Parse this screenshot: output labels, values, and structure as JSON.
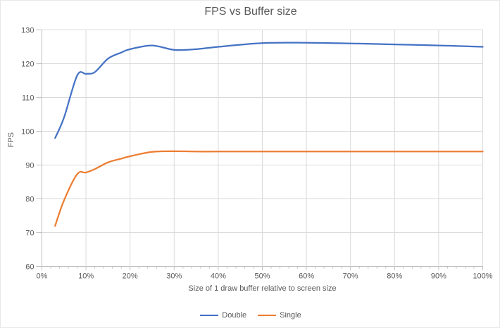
{
  "title": "FPS vs Buffer size",
  "colors": {
    "series_double": "#4472C4",
    "series_single": "#ED7D31",
    "gridline": "#D9D9D9",
    "axis_line": "#BFBFBF",
    "text": "#595959",
    "background": "#FFFFFF"
  },
  "chart_data": {
    "type": "line",
    "title": "FPS vs Buffer size",
    "xlabel": "Size of 1 draw buffer relative to screen size",
    "ylabel": "FPS",
    "xlim": [
      0,
      100
    ],
    "ylim": [
      60,
      130
    ],
    "x_major_step": 10,
    "x_minor_step": 2,
    "y_major_step": 10,
    "grid": true,
    "smooth_lines": true,
    "legend_position": "bottom",
    "x_tick_labels": [
      "0%",
      "10%",
      "20%",
      "30%",
      "40%",
      "50%",
      "60%",
      "70%",
      "80%",
      "90%",
      "100%"
    ],
    "y_tick_labels": [
      "60",
      "70",
      "80",
      "90",
      "100",
      "110",
      "120",
      "130"
    ],
    "x": [
      3,
      5,
      8,
      10,
      12,
      15,
      18,
      20,
      25,
      30,
      35,
      40,
      50,
      60,
      70,
      80,
      90,
      100
    ],
    "series": [
      {
        "name": "Double",
        "color": "#4472C4",
        "values": [
          98,
          104,
          116.5,
          117,
          117.5,
          121.5,
          123.3,
          124.3,
          125.4,
          124.1,
          124.3,
          125,
          126.1,
          126.2,
          126,
          125.7,
          125.4,
          125
        ]
      },
      {
        "name": "Single",
        "color": "#ED7D31",
        "values": [
          72,
          79.5,
          87.3,
          87.8,
          88.8,
          90.8,
          91.9,
          92.6,
          93.9,
          94.1,
          94,
          94,
          94,
          94,
          94,
          94,
          94,
          94
        ]
      }
    ]
  }
}
